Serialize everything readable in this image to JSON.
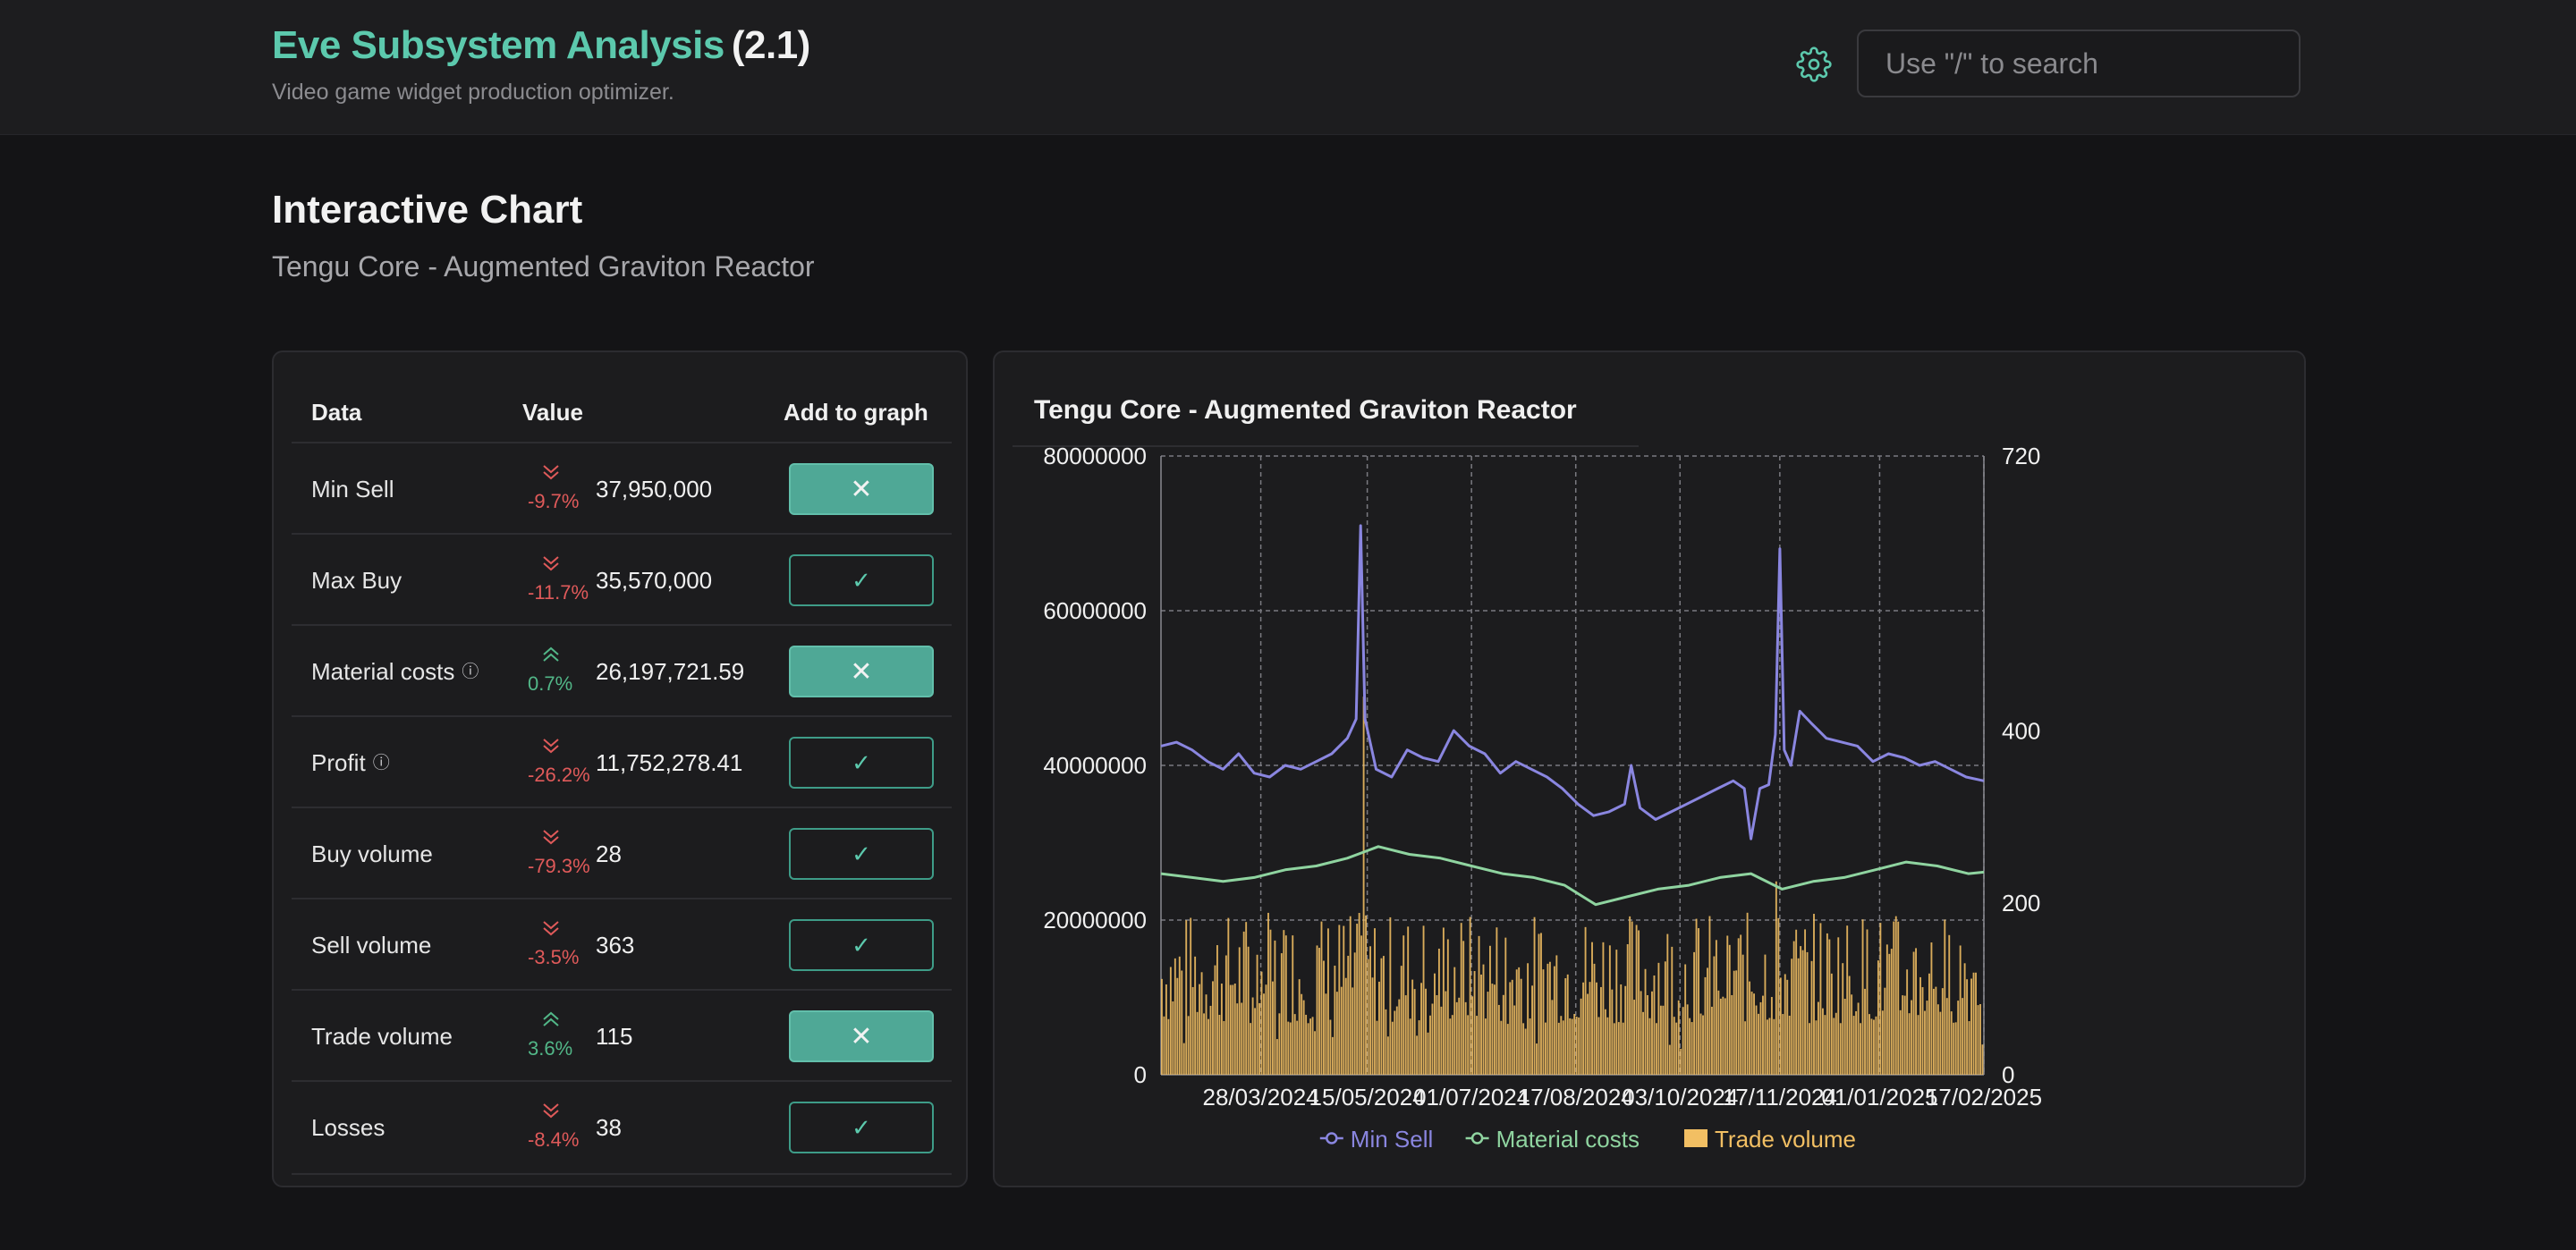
{
  "header": {
    "app_name": "Eve Subsystem Analysis",
    "version": "(2.1)",
    "subtitle": "Video game widget production optimizer.",
    "search_placeholder": "Use \"/\" to search",
    "settings_icon": "gear-icon"
  },
  "page": {
    "title": "Interactive Chart",
    "subtitle": "Tengu Core - Augmented Graviton Reactor"
  },
  "table": {
    "headers": [
      "Data",
      "Value",
      "Add to graph"
    ],
    "rows": [
      {
        "label": "Min Sell",
        "info": false,
        "direction": "down",
        "pct": "-9.7%",
        "value": "37,950,000",
        "in_graph": true
      },
      {
        "label": "Max Buy",
        "info": false,
        "direction": "down",
        "pct": "-11.7%",
        "value": "35,570,000",
        "in_graph": false
      },
      {
        "label": "Material costs",
        "info": true,
        "direction": "up",
        "pct": "0.7%",
        "value": "26,197,721.59",
        "in_graph": true
      },
      {
        "label": "Profit",
        "info": true,
        "direction": "down",
        "pct": "-26.2%",
        "value": "11,752,278.41",
        "in_graph": false
      },
      {
        "label": "Buy volume",
        "info": false,
        "direction": "down",
        "pct": "-79.3%",
        "value": "28",
        "in_graph": false
      },
      {
        "label": "Sell volume",
        "info": false,
        "direction": "down",
        "pct": "-3.5%",
        "value": "363",
        "in_graph": false
      },
      {
        "label": "Trade volume",
        "info": false,
        "direction": "up",
        "pct": "3.6%",
        "value": "115",
        "in_graph": true
      },
      {
        "label": "Losses",
        "info": false,
        "direction": "down",
        "pct": "-8.4%",
        "value": "38",
        "in_graph": false
      }
    ],
    "icons": {
      "added": "close-icon",
      "not_added": "check-icon",
      "info": "info-icon",
      "down": "double-chevron-down-icon",
      "up": "double-chevron-up-icon"
    },
    "colors": {
      "negative": "#e05a5a",
      "positive": "#52b788",
      "accent": "#5cc9ad"
    }
  },
  "chart_data": {
    "type": "line",
    "title": "Tengu Core - Augmented Graviton Reactor",
    "x_start": "2024-02-12",
    "x_end": "2025-02-17",
    "x_tick_labels": [
      "28/03/2024",
      "15/05/2024",
      "01/07/2024",
      "17/08/2024",
      "03/10/2024",
      "17/11/2024",
      "01/01/2025",
      "17/02/2025"
    ],
    "y_left": {
      "min": 0,
      "max": 80000000,
      "ticks": [
        "0",
        "20000000",
        "40000000",
        "60000000",
        "80000000"
      ]
    },
    "y_right": {
      "min": 0,
      "max": 720,
      "ticks": [
        "0",
        "200",
        "400",
        "720"
      ]
    },
    "grid": true,
    "legend_position": "bottom",
    "series": [
      {
        "name": "Min Sell",
        "kind": "line",
        "axis": "left",
        "color": "#8a86e0",
        "points": [
          [
            "2024-02-12",
            42500000
          ],
          [
            "2024-02-19",
            43000000
          ],
          [
            "2024-02-26",
            42000000
          ],
          [
            "2024-03-04",
            40500000
          ],
          [
            "2024-03-11",
            39500000
          ],
          [
            "2024-03-18",
            41500000
          ],
          [
            "2024-03-25",
            39000000
          ],
          [
            "2024-04-01",
            38500000
          ],
          [
            "2024-04-08",
            40000000
          ],
          [
            "2024-04-15",
            39500000
          ],
          [
            "2024-04-22",
            40500000
          ],
          [
            "2024-04-29",
            41500000
          ],
          [
            "2024-05-06",
            43500000
          ],
          [
            "2024-05-10",
            46000000
          ],
          [
            "2024-05-12",
            71000000
          ],
          [
            "2024-05-14",
            46000000
          ],
          [
            "2024-05-19",
            39500000
          ],
          [
            "2024-05-26",
            38500000
          ],
          [
            "2024-06-02",
            42000000
          ],
          [
            "2024-06-09",
            41000000
          ],
          [
            "2024-06-16",
            40500000
          ],
          [
            "2024-06-23",
            44500000
          ],
          [
            "2024-06-30",
            42500000
          ],
          [
            "2024-07-07",
            41500000
          ],
          [
            "2024-07-14",
            39000000
          ],
          [
            "2024-07-21",
            40500000
          ],
          [
            "2024-07-28",
            39500000
          ],
          [
            "2024-08-04",
            38500000
          ],
          [
            "2024-08-11",
            37000000
          ],
          [
            "2024-08-18",
            35000000
          ],
          [
            "2024-08-25",
            33500000
          ],
          [
            "2024-09-01",
            34000000
          ],
          [
            "2024-09-08",
            35000000
          ],
          [
            "2024-09-11",
            40000000
          ],
          [
            "2024-09-15",
            34500000
          ],
          [
            "2024-09-22",
            33000000
          ],
          [
            "2024-09-29",
            34000000
          ],
          [
            "2024-10-06",
            35000000
          ],
          [
            "2024-10-13",
            36000000
          ],
          [
            "2024-10-20",
            37000000
          ],
          [
            "2024-10-27",
            38000000
          ],
          [
            "2024-11-01",
            37000000
          ],
          [
            "2024-11-04",
            30500000
          ],
          [
            "2024-11-08",
            37000000
          ],
          [
            "2024-11-12",
            37500000
          ],
          [
            "2024-11-15",
            44000000
          ],
          [
            "2024-11-17",
            68000000
          ],
          [
            "2024-11-19",
            42000000
          ],
          [
            "2024-11-22",
            40000000
          ],
          [
            "2024-11-26",
            47000000
          ],
          [
            "2024-12-01",
            45500000
          ],
          [
            "2024-12-08",
            43500000
          ],
          [
            "2024-12-15",
            43000000
          ],
          [
            "2024-12-22",
            42500000
          ],
          [
            "2024-12-29",
            40500000
          ],
          [
            "2025-01-05",
            41500000
          ],
          [
            "2025-01-12",
            41000000
          ],
          [
            "2025-01-19",
            40000000
          ],
          [
            "2025-01-26",
            40500000
          ],
          [
            "2025-02-02",
            39500000
          ],
          [
            "2025-02-09",
            38500000
          ],
          [
            "2025-02-17",
            38000000
          ]
        ]
      },
      {
        "name": "Material costs",
        "kind": "line",
        "axis": "left",
        "color": "#8fd4a0",
        "points": [
          [
            "2024-02-12",
            26000000
          ],
          [
            "2024-02-26",
            25500000
          ],
          [
            "2024-03-11",
            25000000
          ],
          [
            "2024-03-25",
            25500000
          ],
          [
            "2024-04-08",
            26500000
          ],
          [
            "2024-04-22",
            27000000
          ],
          [
            "2024-05-06",
            28000000
          ],
          [
            "2024-05-20",
            29500000
          ],
          [
            "2024-06-03",
            28500000
          ],
          [
            "2024-06-17",
            28000000
          ],
          [
            "2024-07-01",
            27000000
          ],
          [
            "2024-07-15",
            26000000
          ],
          [
            "2024-07-29",
            25500000
          ],
          [
            "2024-08-12",
            24500000
          ],
          [
            "2024-08-26",
            22000000
          ],
          [
            "2024-09-09",
            23000000
          ],
          [
            "2024-09-23",
            24000000
          ],
          [
            "2024-10-07",
            24500000
          ],
          [
            "2024-10-21",
            25500000
          ],
          [
            "2024-11-04",
            26000000
          ],
          [
            "2024-11-18",
            24000000
          ],
          [
            "2024-12-02",
            25000000
          ],
          [
            "2024-12-16",
            25500000
          ],
          [
            "2024-12-30",
            26500000
          ],
          [
            "2025-01-13",
            27500000
          ],
          [
            "2025-01-27",
            27000000
          ],
          [
            "2025-02-10",
            26000000
          ],
          [
            "2025-02-17",
            26200000
          ]
        ]
      },
      {
        "name": "Trade volume",
        "kind": "bar",
        "axis": "right",
        "color": "#f2bf63",
        "typical_range": [
          60,
          190
        ],
        "peaks": [
          [
            "2024-03-28",
            240
          ],
          [
            "2024-05-13",
            440
          ],
          [
            "2024-11-15",
            225
          ]
        ]
      }
    ]
  }
}
